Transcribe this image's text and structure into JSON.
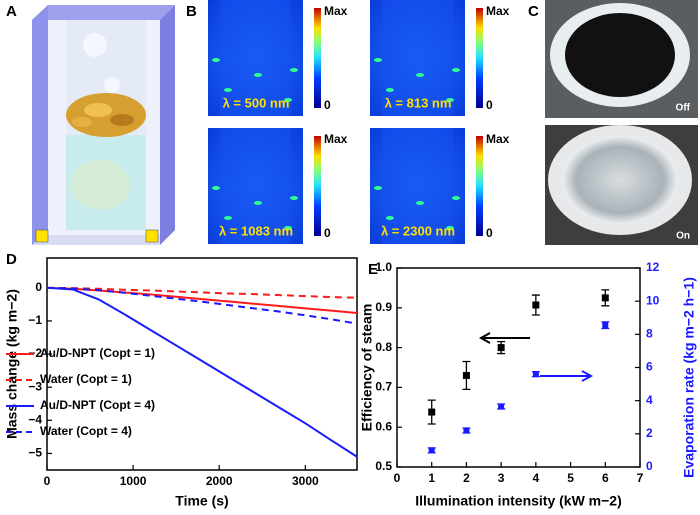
{
  "panels": {
    "A": {
      "label": "A"
    },
    "B": {
      "label": "B",
      "colorbar_max": "Max",
      "colorbar_min": "0",
      "wavelengths": [
        "λ = 500 nm",
        "λ = 813 nm",
        "λ = 1083 nm",
        "λ = 2300 nm"
      ]
    },
    "C": {
      "label": "C",
      "states": [
        "Off",
        "On"
      ]
    }
  },
  "chart_data": [
    {
      "type": "line",
      "panel_label": "D",
      "xlabel": "Time (s)",
      "ylabel": "Mass change (kg m−2)",
      "x": [
        0,
        300,
        600,
        900,
        1200,
        1500,
        1800,
        2100,
        2400,
        2700,
        3000,
        3300,
        3600
      ],
      "series": [
        {
          "name": "Au/D-NPT (Copt = 1)",
          "color": "#ff1a1a",
          "dash": false,
          "values": [
            0,
            -0.03,
            -0.08,
            -0.14,
            -0.2,
            -0.27,
            -0.34,
            -0.41,
            -0.48,
            -0.55,
            -0.62,
            -0.69,
            -0.76
          ]
        },
        {
          "name": "Water (Copt = 1)",
          "color": "#ff1a1a",
          "dash": true,
          "values": [
            0,
            -0.01,
            -0.03,
            -0.06,
            -0.08,
            -0.11,
            -0.14,
            -0.17,
            -0.19,
            -0.22,
            -0.25,
            -0.28,
            -0.3
          ]
        },
        {
          "name": "Au/D-NPT (Copt = 4)",
          "color": "#1a1aff",
          "dash": false,
          "values": [
            0,
            -0.05,
            -0.35,
            -0.8,
            -1.27,
            -1.74,
            -2.21,
            -2.68,
            -3.15,
            -3.62,
            -4.09,
            -4.6,
            -5.1
          ]
        },
        {
          "name": "Water (Copt = 4)",
          "color": "#1a1aff",
          "dash": true,
          "values": [
            0,
            -0.02,
            -0.07,
            -0.15,
            -0.24,
            -0.33,
            -0.42,
            -0.52,
            -0.62,
            -0.72,
            -0.83,
            -0.95,
            -1.08
          ]
        }
      ],
      "xlim": [
        0,
        3600
      ],
      "xticks": [
        0,
        1000,
        2000,
        3000
      ],
      "ylim": [
        -5.5,
        0.9
      ],
      "yticks": [
        0,
        {
          "value": -1,
          "label": "−1"
        },
        {
          "value": -2,
          "label": "−2"
        },
        {
          "value": -3,
          "label": "−3"
        },
        {
          "value": -4,
          "label": "−4"
        },
        {
          "value": -5,
          "label": "−5"
        }
      ],
      "legend": "lower left"
    },
    {
      "type": "scatter",
      "panel_label": "E",
      "xlabel": "Illumination intensity (kW m−2)",
      "ylabel": "Efficiency of steam",
      "y2label": "Evaporation rate (kg m−2 h−1)",
      "x": [
        1,
        2,
        3,
        4,
        6
      ],
      "series": [
        {
          "color": "#000000",
          "values": [
            0.638,
            0.73,
            0.8,
            0.907,
            0.925
          ],
          "errors": [
            0.03,
            0.035,
            0.015,
            0.025,
            0.02
          ]
        },
        {
          "color": "#1a1aff",
          "axis": "y2",
          "values": [
            1.0,
            2.2,
            3.65,
            5.6,
            8.55
          ],
          "errors": [
            0.15,
            0.15,
            0.15,
            0.15,
            0.2
          ]
        }
      ],
      "xlim": [
        0,
        7
      ],
      "xticks": [
        0,
        1,
        2,
        3,
        4,
        5,
        6,
        7
      ],
      "ylim": [
        0.5,
        1.0
      ],
      "yticks": [
        0.5,
        0.6,
        0.7,
        0.8,
        0.9,
        {
          "value": 1.0,
          "label": "1.0"
        }
      ],
      "y2lim": [
        0,
        12
      ],
      "y2ticks": [
        0,
        2,
        4,
        6,
        8,
        10,
        12
      ]
    }
  ]
}
